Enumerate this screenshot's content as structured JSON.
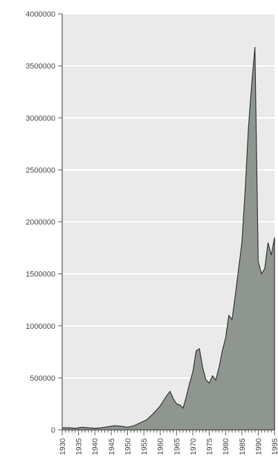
{
  "chart_data": {
    "type": "area",
    "title": "",
    "xlabel": "",
    "ylabel": "",
    "xlim": [
      1930,
      1995
    ],
    "ylim": [
      0,
      4000000
    ],
    "grid": true,
    "legend": "none",
    "x_ticks": [
      "1930",
      "1935",
      "1940",
      "1945",
      "1950",
      "1955",
      "1960",
      "1965",
      "1970",
      "1975",
      "1980",
      "1985",
      "1990",
      "1995"
    ],
    "y_ticks": [
      "0",
      "500000",
      "1000000",
      "1500000",
      "2000000",
      "2500000",
      "3000000",
      "3500000",
      "4000000"
    ],
    "x": [
      1930,
      1932,
      1934,
      1936,
      1938,
      1940,
      1942,
      1944,
      1946,
      1948,
      1950,
      1952,
      1954,
      1956,
      1958,
      1960,
      1962,
      1963,
      1964,
      1965,
      1966,
      1967,
      1968,
      1969,
      1970,
      1971,
      1972,
      1973,
      1974,
      1975,
      1976,
      1977,
      1978,
      1979,
      1980,
      1981,
      1982,
      1983,
      1984,
      1985,
      1986,
      1987,
      1988,
      1989,
      1990,
      1991,
      1992,
      1993,
      1994,
      1995
    ],
    "values": [
      20000,
      20000,
      15000,
      25000,
      20000,
      15000,
      20000,
      30000,
      40000,
      35000,
      25000,
      40000,
      70000,
      100000,
      160000,
      230000,
      330000,
      370000,
      300000,
      250000,
      240000,
      210000,
      320000,
      450000,
      560000,
      760000,
      780000,
      600000,
      480000,
      450000,
      520000,
      480000,
      600000,
      760000,
      880000,
      1100000,
      1060000,
      1300000,
      1550000,
      1800000,
      2300000,
      2900000,
      3320000,
      3680000,
      1620000,
      1500000,
      1550000,
      1800000,
      1680000,
      1850000
    ],
    "colors": {
      "area_fill": "#8f968f",
      "area_line": "#2f3230",
      "plot_background": "#eaeaea",
      "grid": "#ffffff"
    }
  }
}
